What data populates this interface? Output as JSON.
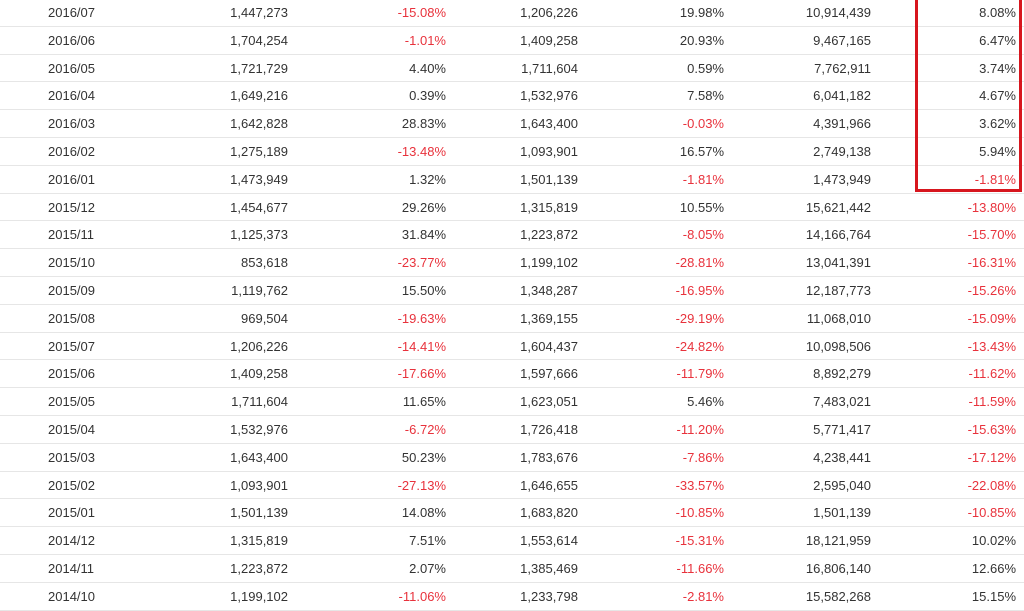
{
  "table": {
    "rows": [
      [
        "2016/07",
        "1,447,273",
        "-15.08%",
        "1,206,226",
        "19.98%",
        "10,914,439",
        "8.08%"
      ],
      [
        "2016/06",
        "1,704,254",
        "-1.01%",
        "1,409,258",
        "20.93%",
        "9,467,165",
        "6.47%"
      ],
      [
        "2016/05",
        "1,721,729",
        "4.40%",
        "1,711,604",
        "0.59%",
        "7,762,911",
        "3.74%"
      ],
      [
        "2016/04",
        "1,649,216",
        "0.39%",
        "1,532,976",
        "7.58%",
        "6,041,182",
        "4.67%"
      ],
      [
        "2016/03",
        "1,642,828",
        "28.83%",
        "1,643,400",
        "-0.03%",
        "4,391,966",
        "3.62%"
      ],
      [
        "2016/02",
        "1,275,189",
        "-13.48%",
        "1,093,901",
        "16.57%",
        "2,749,138",
        "5.94%"
      ],
      [
        "2016/01",
        "1,473,949",
        "1.32%",
        "1,501,139",
        "-1.81%",
        "1,473,949",
        "-1.81%"
      ],
      [
        "2015/12",
        "1,454,677",
        "29.26%",
        "1,315,819",
        "10.55%",
        "15,621,442",
        "-13.80%"
      ],
      [
        "2015/11",
        "1,125,373",
        "31.84%",
        "1,223,872",
        "-8.05%",
        "14,166,764",
        "-15.70%"
      ],
      [
        "2015/10",
        "853,618",
        "-23.77%",
        "1,199,102",
        "-28.81%",
        "13,041,391",
        "-16.31%"
      ],
      [
        "2015/09",
        "1,119,762",
        "15.50%",
        "1,348,287",
        "-16.95%",
        "12,187,773",
        "-15.26%"
      ],
      [
        "2015/08",
        "969,504",
        "-19.63%",
        "1,369,155",
        "-29.19%",
        "11,068,010",
        "-15.09%"
      ],
      [
        "2015/07",
        "1,206,226",
        "-14.41%",
        "1,604,437",
        "-24.82%",
        "10,098,506",
        "-13.43%"
      ],
      [
        "2015/06",
        "1,409,258",
        "-17.66%",
        "1,597,666",
        "-11.79%",
        "8,892,279",
        "-11.62%"
      ],
      [
        "2015/05",
        "1,711,604",
        "11.65%",
        "1,623,051",
        "5.46%",
        "7,483,021",
        "-11.59%"
      ],
      [
        "2015/04",
        "1,532,976",
        "-6.72%",
        "1,726,418",
        "-11.20%",
        "5,771,417",
        "-15.63%"
      ],
      [
        "2015/03",
        "1,643,400",
        "50.23%",
        "1,783,676",
        "-7.86%",
        "4,238,441",
        "-17.12%"
      ],
      [
        "2015/02",
        "1,093,901",
        "-27.13%",
        "1,646,655",
        "-33.57%",
        "2,595,040",
        "-22.08%"
      ],
      [
        "2015/01",
        "1,501,139",
        "14.08%",
        "1,683,820",
        "-10.85%",
        "1,501,139",
        "-10.85%"
      ],
      [
        "2014/12",
        "1,315,819",
        "7.51%",
        "1,553,614",
        "-15.31%",
        "18,121,959",
        "10.02%"
      ],
      [
        "2014/11",
        "1,223,872",
        "2.07%",
        "1,385,469",
        "-11.66%",
        "16,806,140",
        "12.66%"
      ],
      [
        "2014/10",
        "1,199,102",
        "-11.06%",
        "1,233,798",
        "-2.81%",
        "15,582,268",
        "15.15%"
      ]
    ]
  }
}
